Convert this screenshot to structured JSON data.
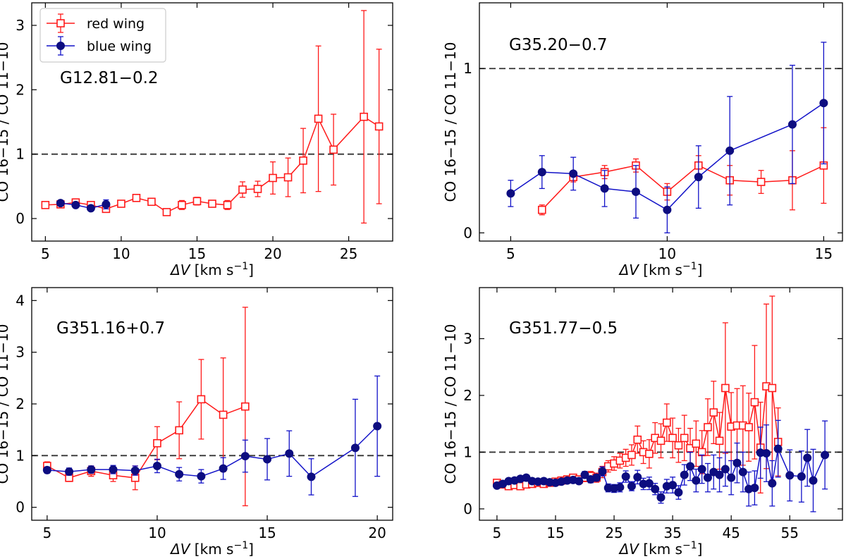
{
  "figure": {
    "xlabel_prefix": "ΔV",
    "xlabel_unit_main": " [km s",
    "xlabel_unit_exp": "−1",
    "xlabel_unit_close": "]",
    "ylabel": "CO 16−15 / CO 11−10",
    "legend": [
      {
        "key": "red",
        "label": "red wing"
      },
      {
        "key": "blue",
        "label": "blue wing"
      }
    ]
  },
  "colors": {
    "red": "#ff1a1a",
    "blue": "#1212c8",
    "blue_marker": "#0d0d80",
    "reference_line": "#333333"
  },
  "chart_data": [
    {
      "type": "line",
      "title": "G12.81−0.2",
      "xlabel": "ΔV [km s−1]",
      "ylabel": "CO 16−15 / CO 11−10",
      "xlim": [
        4.1,
        27.9
      ],
      "ylim": [
        -0.35,
        3.35
      ],
      "xticks": [
        5,
        10,
        15,
        20,
        25
      ],
      "yticks": [
        0,
        1,
        2,
        3
      ],
      "reference_line": 1,
      "series": [
        {
          "name": "red wing",
          "color_key": "red",
          "marker": "open-square",
          "x": [
            5,
            6,
            7,
            8,
            9,
            10,
            11,
            12,
            13,
            14,
            15,
            16,
            17,
            18,
            19,
            20,
            21,
            22,
            23,
            24,
            26,
            27
          ],
          "y": [
            0.21,
            0.22,
            0.25,
            0.21,
            0.15,
            0.23,
            0.32,
            0.26,
            0.1,
            0.21,
            0.27,
            0.23,
            0.21,
            0.45,
            0.46,
            0.63,
            0.64,
            0.9,
            1.55,
            1.07,
            1.58,
            1.43
          ],
          "err": [
            0.03,
            0.04,
            0.05,
            0.03,
            0.05,
            0.04,
            0.04,
            0.04,
            0.04,
            0.07,
            0.06,
            0.05,
            0.07,
            0.12,
            0.12,
            0.25,
            0.3,
            0.5,
            1.13,
            0.55,
            1.65,
            1.2
          ]
        },
        {
          "name": "blue wing",
          "color_key": "blue",
          "marker": "filled-circle",
          "x": [
            6,
            7,
            8,
            9
          ],
          "y": [
            0.24,
            0.21,
            0.16,
            0.22
          ],
          "err": [
            0.03,
            0.04,
            0.04,
            0.07
          ]
        }
      ]
    },
    {
      "type": "line",
      "title": "G35.20−0.7",
      "xlabel": "ΔV [km s−1]",
      "ylabel": "CO 16−15 / CO 11−10",
      "xlim": [
        4.0,
        15.6
      ],
      "ylim": [
        -0.05,
        1.4
      ],
      "xticks": [
        5,
        10,
        15
      ],
      "yticks": [
        0,
        1
      ],
      "reference_line": 1,
      "series": [
        {
          "name": "red wing",
          "color_key": "red",
          "marker": "open-square",
          "x": [
            6,
            7,
            8,
            9,
            10,
            11,
            12,
            13,
            14,
            15
          ],
          "y": [
            0.14,
            0.34,
            0.37,
            0.41,
            0.25,
            0.41,
            0.32,
            0.31,
            0.32,
            0.41
          ],
          "err": [
            0.03,
            0.03,
            0.04,
            0.04,
            0.05,
            0.06,
            0.09,
            0.07,
            0.18,
            0.23
          ]
        },
        {
          "name": "blue wing",
          "color_key": "blue",
          "marker": "filled-circle",
          "x": [
            5,
            6,
            7,
            8,
            9,
            10,
            11,
            12,
            13,
            14,
            15
          ],
          "y": [
            0.24,
            0.37,
            0.36,
            0.27,
            0.25,
            0.14,
            0.34,
            0.5,
            null,
            0.66,
            0.79
          ],
          "err": [
            0.08,
            0.1,
            0.1,
            0.11,
            0.16,
            0.14,
            0.19,
            0.33,
            null,
            0.36,
            0.37
          ]
        }
      ]
    },
    {
      "type": "line",
      "title": "G351.16+0.7",
      "xlabel": "ΔV [km s−1]",
      "ylabel": "CO 16−15 / CO 11−10",
      "xlim": [
        4.3,
        20.7
      ],
      "ylim": [
        -0.25,
        4.25
      ],
      "xticks": [
        5,
        10,
        15,
        20
      ],
      "yticks": [
        0,
        1,
        2,
        3,
        4
      ],
      "reference_line": 1,
      "series": [
        {
          "name": "red wing",
          "color_key": "red",
          "marker": "open-square",
          "x": [
            5,
            6,
            7,
            8,
            9,
            10,
            11,
            12,
            13,
            14
          ],
          "y": [
            0.8,
            0.57,
            0.7,
            0.62,
            0.57,
            1.24,
            1.49,
            2.09,
            1.79,
            1.95
          ],
          "err": [
            0.08,
            0.07,
            0.1,
            0.12,
            0.23,
            0.32,
            0.55,
            0.77,
            1.1,
            1.92
          ]
        },
        {
          "name": "blue wing",
          "color_key": "blue",
          "marker": "filled-circle",
          "x": [
            5,
            6,
            7,
            8,
            9,
            10,
            11,
            12,
            13,
            14,
            15,
            16,
            17,
            19,
            20
          ],
          "y": [
            0.72,
            0.69,
            0.73,
            0.73,
            0.71,
            0.8,
            0.64,
            0.6,
            0.75,
            0.99,
            0.93,
            1.04,
            0.59,
            1.15,
            1.57
          ],
          "err": [
            0.06,
            0.07,
            0.07,
            0.08,
            0.09,
            0.13,
            0.13,
            0.13,
            0.21,
            0.31,
            0.4,
            0.44,
            0.35,
            0.94,
            0.97
          ]
        }
      ]
    },
    {
      "type": "line",
      "title": "G351.77−0.5",
      "xlabel": "ΔV [km s−1]",
      "ylabel": "CO 16−15 / CO 11−10",
      "xlim": [
        2.0,
        64.0
      ],
      "ylim": [
        -0.2,
        3.9
      ],
      "xticks": [
        5,
        15,
        25,
        35,
        45,
        55
      ],
      "yticks": [
        0,
        1,
        2,
        3
      ],
      "reference_line": 1,
      "series": [
        {
          "name": "red wing",
          "color_key": "red",
          "marker": "open-square",
          "x": [
            5,
            6,
            7,
            8,
            9,
            10,
            11,
            12,
            13,
            14,
            15,
            16,
            17,
            18,
            19,
            20,
            21,
            22,
            23,
            24,
            25,
            26,
            27,
            28,
            29,
            30,
            31,
            32,
            33,
            34,
            35,
            36,
            37,
            38,
            39,
            40,
            41,
            42,
            43,
            44,
            45,
            46,
            47,
            48,
            49,
            50,
            51,
            52,
            53
          ],
          "y": [
            0.46,
            0.43,
            0.4,
            0.42,
            0.4,
            0.43,
            0.44,
            0.46,
            0.44,
            0.46,
            0.48,
            0.5,
            0.52,
            0.55,
            0.52,
            0.55,
            0.58,
            0.55,
            0.65,
            0.75,
            0.8,
            0.85,
            0.9,
            0.95,
            1.22,
            1.0,
            0.97,
            1.25,
            1.2,
            1.52,
            1.25,
            1.12,
            1.25,
            1.07,
            1.15,
            1.0,
            1.44,
            1.7,
            1.2,
            2.13,
            1.45,
            1.47,
            1.47,
            1.44,
            1.88,
            1.08,
            2.16,
            2.13,
            1.18
          ],
          "err": [
            0.05,
            0.05,
            0.05,
            0.05,
            0.05,
            0.05,
            0.05,
            0.05,
            0.05,
            0.05,
            0.05,
            0.05,
            0.06,
            0.06,
            0.06,
            0.07,
            0.08,
            0.08,
            0.1,
            0.1,
            0.12,
            0.13,
            0.15,
            0.18,
            0.24,
            0.2,
            0.25,
            0.27,
            0.3,
            0.33,
            0.35,
            0.3,
            0.4,
            0.35,
            0.4,
            0.38,
            0.5,
            0.55,
            0.5,
            1.15,
            0.6,
            0.65,
            0.7,
            0.6,
            1.0,
            0.8,
            1.45,
            1.62,
            0.6
          ]
        },
        {
          "name": "blue wing",
          "color_key": "blue",
          "marker": "filled-circle",
          "x": [
            5,
            6,
            7,
            8,
            9,
            10,
            11,
            12,
            13,
            14,
            15,
            16,
            17,
            18,
            19,
            20,
            21,
            22,
            23,
            24,
            25,
            26,
            27,
            28,
            29,
            30,
            31,
            32,
            33,
            34,
            35,
            36,
            37,
            38,
            39,
            40,
            41,
            42,
            43,
            44,
            45,
            46,
            47,
            48,
            49,
            50,
            51,
            52,
            53,
            55,
            57,
            58,
            59,
            61
          ],
          "y": [
            0.41,
            0.44,
            0.49,
            0.5,
            0.53,
            0.55,
            0.49,
            0.48,
            0.49,
            0.47,
            0.46,
            0.48,
            0.5,
            0.51,
            0.49,
            0.6,
            0.52,
            0.55,
            0.66,
            0.37,
            0.36,
            0.38,
            0.57,
            0.4,
            0.56,
            0.44,
            0.45,
            0.35,
            0.2,
            0.4,
            0.42,
            0.29,
            0.6,
            0.75,
            0.5,
            0.7,
            0.55,
            0.65,
            0.6,
            0.7,
            0.55,
            0.81,
            0.65,
            0.35,
            0.37,
            0.99,
            0.98,
            0.45,
            1.06,
            0.59,
            0.57,
            0.9,
            0.5,
            0.95
          ],
          "err": [
            0.04,
            0.04,
            0.04,
            0.05,
            0.05,
            0.05,
            0.05,
            0.05,
            0.05,
            0.05,
            0.05,
            0.05,
            0.05,
            0.05,
            0.05,
            0.06,
            0.06,
            0.06,
            0.08,
            0.07,
            0.07,
            0.08,
            0.1,
            0.08,
            0.12,
            0.1,
            0.11,
            0.1,
            0.1,
            0.12,
            0.14,
            0.12,
            0.18,
            0.25,
            0.2,
            0.25,
            0.25,
            0.3,
            0.3,
            0.3,
            0.3,
            0.35,
            0.35,
            0.3,
            0.3,
            0.45,
            0.5,
            0.4,
            0.5,
            0.45,
            0.45,
            0.5,
            0.55,
            0.6
          ]
        }
      ]
    }
  ]
}
